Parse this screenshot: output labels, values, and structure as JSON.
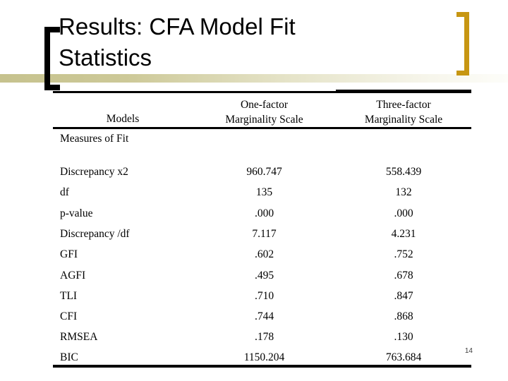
{
  "slide": {
    "title_lines": [
      "Results: CFA Model Fit",
      "Statistics"
    ],
    "page_number": "14"
  },
  "colors": {
    "accent_gold": "#C79612",
    "band_left": "#C6C28E",
    "band_right": "#FDFDF9",
    "text": "#000000"
  },
  "table": {
    "header": {
      "models_label": "Models",
      "one_factor_lines": [
        "One-factor",
        "Marginality Scale"
      ],
      "three_factor_lines": [
        "Three-factor",
        "Marginality Scale"
      ]
    },
    "section_label": "Measures of Fit",
    "rows": [
      {
        "label": "Discrepancy x2",
        "one_factor": "960.747",
        "three_factor": "558.439"
      },
      {
        "label": "df",
        "one_factor": "135",
        "three_factor": "132"
      },
      {
        "label": "p-value",
        "one_factor": ".000",
        "three_factor": ".000"
      },
      {
        "label": "Discrepancy /df",
        "one_factor": "7.117",
        "three_factor": "4.231"
      },
      {
        "label": "GFI",
        "one_factor": ".602",
        "three_factor": ".752"
      },
      {
        "label": "AGFI",
        "one_factor": ".495",
        "three_factor": ".678"
      },
      {
        "label": "TLI",
        "one_factor": ".710",
        "three_factor": ".847"
      },
      {
        "label": "CFI",
        "one_factor": ".744",
        "three_factor": ".868"
      },
      {
        "label": "RMSEA",
        "one_factor": ".178",
        "three_factor": ".130"
      },
      {
        "label": "BIC",
        "one_factor": "1150.204",
        "three_factor": "763.684"
      }
    ]
  }
}
